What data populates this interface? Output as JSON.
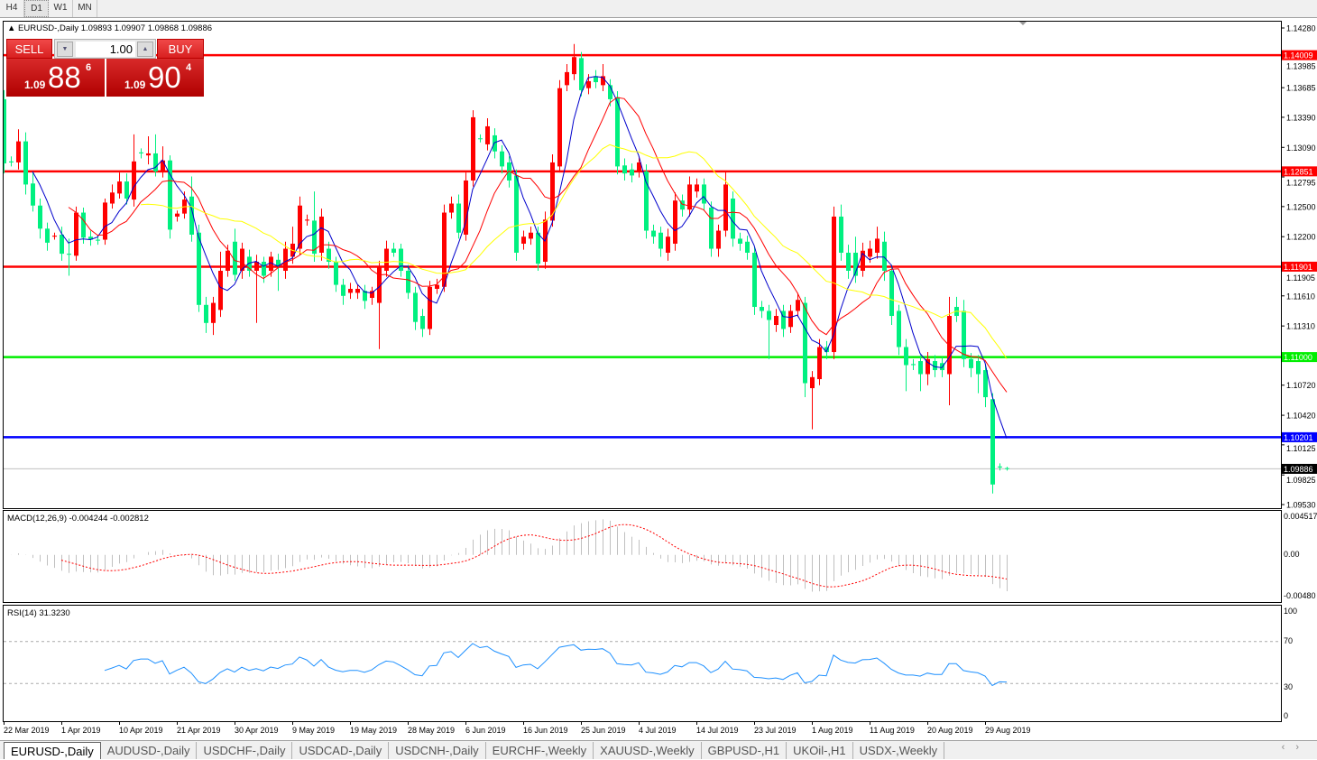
{
  "timeframes": [
    {
      "label": "H4",
      "selected": false
    },
    {
      "label": "D1",
      "selected": true
    },
    {
      "label": "W1",
      "selected": false
    },
    {
      "label": "MN",
      "selected": false
    }
  ],
  "info": {
    "symbol": "EURUSD-,Daily",
    "ohlc_text": "1.09893 1.09907 1.09868 1.09886"
  },
  "trade_panel": {
    "sell_label": "SELL",
    "buy_label": "BUY",
    "lots": "1.00",
    "sell_prefix": "1.09",
    "sell_big": "88",
    "sell_sup": "6",
    "buy_prefix": "1.09",
    "buy_big": "90",
    "buy_sup": "4"
  },
  "colors": {
    "bull": "#ff0000",
    "bear": "#00f080",
    "ma_fast": "#0000cc",
    "ma_mid": "#ff0000",
    "ma_slow": "#ffff00",
    "macd_hist": "#c0c0c0",
    "macd_signal": "#ff0000",
    "rsi": "#1e90ff"
  },
  "price_axis": [
    "1.14280",
    "1.13985",
    "1.13685",
    "1.13390",
    "1.13090",
    "1.12795",
    "1.12500",
    "1.12200",
    "1.11905",
    "1.11610",
    "1.11310",
    "1.10720",
    "1.10420",
    "1.10125",
    "1.09825",
    "1.09530"
  ],
  "hlines": [
    {
      "price": "1.14009",
      "color": "#ff0000"
    },
    {
      "price": "1.12851",
      "color": "#ff0000"
    },
    {
      "price": "1.11901",
      "color": "#ff0000"
    },
    {
      "price": "1.11000",
      "color": "#00ee00"
    },
    {
      "price": "1.10201",
      "color": "#0000ff"
    }
  ],
  "current_price": {
    "price": "1.09886",
    "color": "#000000"
  },
  "macd": {
    "label": "MACD(12,26,9) -0.004244 -0.002812",
    "axis": [
      "0.004517",
      "0.00",
      "-0.00480"
    ]
  },
  "rsi": {
    "label": "RSI(14) 31.3230",
    "axis": [
      "100",
      "70",
      "30",
      "0"
    ]
  },
  "date_axis": [
    "22 Mar 2019",
    "1 Apr 2019",
    "10 Apr 2019",
    "21 Apr 2019",
    "30 Apr 2019",
    "9 May 2019",
    "19 May 2019",
    "28 May 2019",
    "6 Jun 2019",
    "16 Jun 2019",
    "25 Jun 2019",
    "4 Jul 2019",
    "14 Jul 2019",
    "23 Jul 2019",
    "1 Aug 2019",
    "11 Aug 2019",
    "20 Aug 2019",
    "29 Aug 2019"
  ],
  "tabs": [
    {
      "label": "EURUSD-,Daily",
      "active": true
    },
    {
      "label": "AUDUSD-,Daily"
    },
    {
      "label": "USDCHF-,Daily"
    },
    {
      "label": "USDCAD-,Daily"
    },
    {
      "label": "USDCNH-,Daily"
    },
    {
      "label": "EURCHF-,Weekly"
    },
    {
      "label": "XAUUSD-,Weekly"
    },
    {
      "label": "GBPUSD-,H1"
    },
    {
      "label": "UKOil-,H1"
    },
    {
      "label": "USDX-,Weekly"
    }
  ],
  "chart_data": {
    "type": "candlestick",
    "ylim": [
      1.0953,
      1.1428
    ],
    "ohlc": [
      [
        1.1357,
        1.1366,
        1.1283,
        1.1293
      ],
      [
        1.1295,
        1.13,
        1.129,
        1.1294
      ],
      [
        1.1294,
        1.1327,
        1.1287,
        1.1315
      ],
      [
        1.1315,
        1.1324,
        1.1262,
        1.1272
      ],
      [
        1.1273,
        1.1285,
        1.1245,
        1.1251
      ],
      [
        1.1251,
        1.1258,
        1.1218,
        1.1228
      ],
      [
        1.1228,
        1.1234,
        1.1206,
        1.1214
      ],
      [
        1.122,
        1.1224,
        1.1217,
        1.1221
      ],
      [
        1.1222,
        1.123,
        1.1196,
        1.1203
      ],
      [
        1.1203,
        1.1218,
        1.1181,
        1.1202
      ],
      [
        1.1201,
        1.125,
        1.1196,
        1.1244
      ],
      [
        1.1244,
        1.1249,
        1.1213,
        1.1219
      ],
      [
        1.122,
        1.1226,
        1.1211,
        1.1217
      ],
      [
        1.1217,
        1.1222,
        1.1212,
        1.1216
      ],
      [
        1.1217,
        1.1258,
        1.1212,
        1.1254
      ],
      [
        1.1253,
        1.1272,
        1.1248,
        1.1264
      ],
      [
        1.1263,
        1.1284,
        1.1258,
        1.1275
      ],
      [
        1.1275,
        1.1283,
        1.1252,
        1.1258
      ],
      [
        1.1257,
        1.1322,
        1.125,
        1.1295
      ],
      [
        1.1304,
        1.1308,
        1.1298,
        1.1303
      ],
      [
        1.1301,
        1.132,
        1.1292,
        1.1303
      ],
      [
        1.1303,
        1.1322,
        1.128,
        1.1285
      ],
      [
        1.1285,
        1.131,
        1.1279,
        1.1296
      ],
      [
        1.1296,
        1.1301,
        1.1218,
        1.1227
      ],
      [
        1.124,
        1.1246,
        1.1235,
        1.1243
      ],
      [
        1.1243,
        1.1265,
        1.1238,
        1.1257
      ],
      [
        1.126,
        1.128,
        1.1215,
        1.1222
      ],
      [
        1.1224,
        1.1232,
        1.1145,
        1.1152
      ],
      [
        1.1152,
        1.116,
        1.1124,
        1.1134
      ],
      [
        1.1134,
        1.116,
        1.1122,
        1.1154
      ],
      [
        1.1147,
        1.1205,
        1.114,
        1.1186
      ],
      [
        1.1186,
        1.1212,
        1.118,
        1.1206
      ],
      [
        1.1215,
        1.1228,
        1.1176,
        1.1182
      ],
      [
        1.1186,
        1.1214,
        1.1178,
        1.1208
      ],
      [
        1.12,
        1.1207,
        1.118,
        1.1186
      ],
      [
        1.1186,
        1.1202,
        1.1134,
        1.1195
      ],
      [
        1.1195,
        1.12,
        1.1174,
        1.1181
      ],
      [
        1.1186,
        1.1205,
        1.118,
        1.12
      ],
      [
        1.1197,
        1.1203,
        1.1166,
        1.1191
      ],
      [
        1.1186,
        1.1215,
        1.1178,
        1.1208
      ],
      [
        1.12,
        1.123,
        1.1193,
        1.1213
      ],
      [
        1.1208,
        1.126,
        1.1202,
        1.1251
      ],
      [
        1.1236,
        1.1242,
        1.1231,
        1.1237
      ],
      [
        1.1236,
        1.1265,
        1.1195,
        1.1203
      ],
      [
        1.1204,
        1.1248,
        1.1196,
        1.124
      ],
      [
        1.1208,
        1.1215,
        1.1188,
        1.1195
      ],
      [
        1.1195,
        1.12,
        1.1165,
        1.1172
      ],
      [
        1.1172,
        1.1178,
        1.1152,
        1.1161
      ],
      [
        1.1164,
        1.1174,
        1.1158,
        1.1168
      ],
      [
        1.1164,
        1.1172,
        1.1158,
        1.1168
      ],
      [
        1.1166,
        1.1172,
        1.1148,
        1.1156
      ],
      [
        1.1159,
        1.117,
        1.1152,
        1.1166
      ],
      [
        1.1154,
        1.1196,
        1.1108,
        1.119
      ],
      [
        1.1186,
        1.1216,
        1.118,
        1.1208
      ],
      [
        1.1208,
        1.1214,
        1.12,
        1.1204
      ],
      [
        1.1208,
        1.1213,
        1.118,
        1.1186
      ],
      [
        1.1186,
        1.1192,
        1.1158,
        1.1164
      ],
      [
        1.1164,
        1.117,
        1.1127,
        1.1135
      ],
      [
        1.1141,
        1.1148,
        1.112,
        1.1128
      ],
      [
        1.1128,
        1.1176,
        1.1122,
        1.117
      ],
      [
        1.1168,
        1.1178,
        1.1163,
        1.1172
      ],
      [
        1.117,
        1.1252,
        1.1165,
        1.1244
      ],
      [
        1.1244,
        1.126,
        1.1238,
        1.1253
      ],
      [
        1.1253,
        1.1262,
        1.1218,
        1.1224
      ],
      [
        1.1222,
        1.1284,
        1.1216,
        1.1276
      ],
      [
        1.1276,
        1.1346,
        1.127,
        1.1339
      ],
      [
        1.1318,
        1.1322,
        1.1314,
        1.1318
      ],
      [
        1.1312,
        1.1338,
        1.1306,
        1.133
      ],
      [
        1.1321,
        1.1328,
        1.1298,
        1.1305
      ],
      [
        1.1305,
        1.1311,
        1.1283,
        1.129
      ],
      [
        1.1294,
        1.13,
        1.1269,
        1.1276
      ],
      [
        1.1281,
        1.1287,
        1.1196,
        1.1204
      ],
      [
        1.1213,
        1.1226,
        1.1207,
        1.122
      ],
      [
        1.1218,
        1.123,
        1.1212,
        1.1224
      ],
      [
        1.1224,
        1.123,
        1.1186,
        1.1193
      ],
      [
        1.1195,
        1.1245,
        1.1188,
        1.1237
      ],
      [
        1.1236,
        1.1302,
        1.123,
        1.1294
      ],
      [
        1.129,
        1.1376,
        1.1284,
        1.1368
      ],
      [
        1.1371,
        1.1392,
        1.1365,
        1.1384
      ],
      [
        1.1382,
        1.1412,
        1.1376,
        1.1399
      ],
      [
        1.1398,
        1.1404,
        1.136,
        1.1366
      ],
      [
        1.1368,
        1.1382,
        1.1362,
        1.1375
      ],
      [
        1.138,
        1.1386,
        1.1368,
        1.1374
      ],
      [
        1.1371,
        1.1392,
        1.1365,
        1.138
      ],
      [
        1.1371,
        1.1377,
        1.135,
        1.1357
      ],
      [
        1.1359,
        1.1365,
        1.1282,
        1.129
      ],
      [
        1.1291,
        1.1298,
        1.1276,
        1.1283
      ],
      [
        1.1287,
        1.1293,
        1.1274,
        1.1281
      ],
      [
        1.1285,
        1.13,
        1.1279,
        1.1294
      ],
      [
        1.1285,
        1.1292,
        1.1218,
        1.1226
      ],
      [
        1.1226,
        1.1232,
        1.1213,
        1.122
      ],
      [
        1.1224,
        1.123,
        1.12,
        1.1208
      ],
      [
        1.1204,
        1.1228,
        1.1196,
        1.122
      ],
      [
        1.1213,
        1.1264,
        1.1206,
        1.1256
      ],
      [
        1.1256,
        1.1262,
        1.124,
        1.1247
      ],
      [
        1.1247,
        1.128,
        1.124,
        1.1272
      ],
      [
        1.1265,
        1.1278,
        1.1259,
        1.1272
      ],
      [
        1.1272,
        1.1278,
        1.1246,
        1.1253
      ],
      [
        1.1249,
        1.1255,
        1.12,
        1.1208
      ],
      [
        1.1208,
        1.1232,
        1.12,
        1.1226
      ],
      [
        1.1226,
        1.1285,
        1.122,
        1.1272
      ],
      [
        1.1258,
        1.1265,
        1.121,
        1.1218
      ],
      [
        1.1218,
        1.1224,
        1.1206,
        1.1213
      ],
      [
        1.1215,
        1.1221,
        1.1197,
        1.1204
      ],
      [
        1.1204,
        1.121,
        1.1142,
        1.115
      ],
      [
        1.115,
        1.1156,
        1.1139,
        1.1146
      ],
      [
        1.1146,
        1.1152,
        1.1098,
        1.1137
      ],
      [
        1.1132,
        1.1148,
        1.1125,
        1.1141
      ],
      [
        1.1146,
        1.1152,
        1.112,
        1.1128
      ],
      [
        1.113,
        1.1152,
        1.1124,
        1.1146
      ],
      [
        1.1146,
        1.1164,
        1.114,
        1.1157
      ],
      [
        1.1154,
        1.116,
        1.106,
        1.1074
      ],
      [
        1.1069,
        1.1086,
        1.1028,
        1.108
      ],
      [
        1.1078,
        1.1118,
        1.1072,
        1.111
      ],
      [
        1.111,
        1.1116,
        1.1098,
        1.1105
      ],
      [
        1.1105,
        1.125,
        1.1098,
        1.124
      ],
      [
        1.124,
        1.1252,
        1.1196,
        1.1204
      ],
      [
        1.1204,
        1.1212,
        1.1178,
        1.1186
      ],
      [
        1.1204,
        1.122,
        1.1174,
        1.1181
      ],
      [
        1.1186,
        1.1214,
        1.118,
        1.1206
      ],
      [
        1.12,
        1.1216,
        1.1194,
        1.1208
      ],
      [
        1.1204,
        1.123,
        1.1198,
        1.1218
      ],
      [
        1.1215,
        1.1225,
        1.1176,
        1.1186
      ],
      [
        1.1186,
        1.1192,
        1.1132,
        1.1141
      ],
      [
        1.1146,
        1.1152,
        1.1102,
        1.111
      ],
      [
        1.111,
        1.1118,
        1.1066,
        1.1092
      ],
      [
        1.1093,
        1.1098,
        1.1087,
        1.1092
      ],
      [
        1.1096,
        1.1102,
        1.1066,
        1.1083
      ],
      [
        1.1083,
        1.1105,
        1.1072,
        1.1098
      ],
      [
        1.1096,
        1.1102,
        1.108,
        1.1087
      ],
      [
        1.1094,
        1.11,
        1.108,
        1.1087
      ],
      [
        1.1083,
        1.116,
        1.1052,
        1.1141
      ],
      [
        1.115,
        1.116,
        1.1135,
        1.1141
      ],
      [
        1.1146,
        1.1157,
        1.109,
        1.1098
      ],
      [
        1.1098,
        1.1104,
        1.108,
        1.1089
      ],
      [
        1.1096,
        1.1102,
        1.1064,
        1.1083
      ],
      [
        1.1087,
        1.1093,
        1.105,
        1.106
      ],
      [
        1.1058,
        1.1064,
        1.0964,
        1.0973
      ],
      [
        1.0991,
        1.0994,
        1.0987,
        1.099
      ],
      [
        1.09893,
        1.09907,
        1.09868,
        1.09886
      ]
    ]
  }
}
